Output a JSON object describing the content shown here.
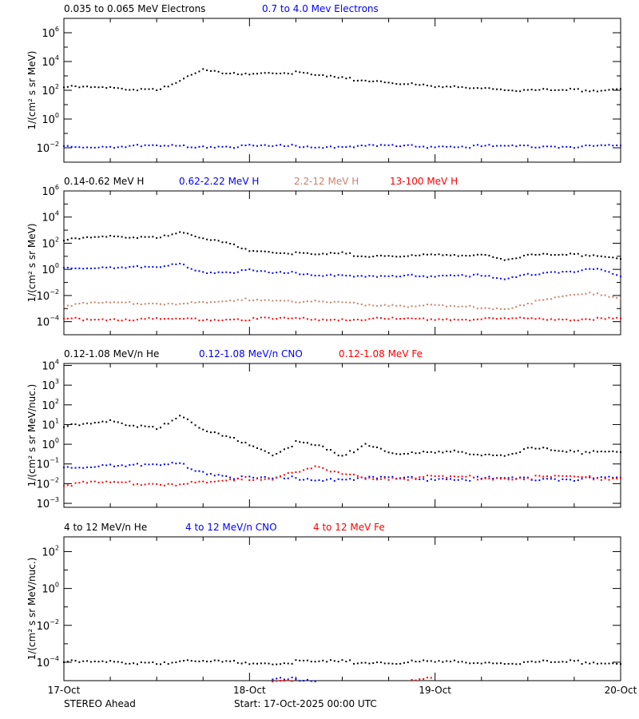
{
  "footer": {
    "spacecraft": "STEREO Ahead",
    "start": "Start: 17-Oct-2025 00:00 UTC"
  },
  "colors": {
    "black": "#000000",
    "blue": "#0000ff",
    "brown": "#c8826a",
    "red": "#ff0000"
  },
  "chart_data": [
    {
      "type": "scatter",
      "ylabel": "1/(cm² s sr MeV)",
      "yscale": "log",
      "ylim": [
        0.001,
        10000000
      ],
      "ytick_exponents": [
        6,
        4,
        2,
        0,
        -2
      ],
      "xlim_hours": [
        0,
        72
      ],
      "x_step_hours": 3,
      "xtick_labels": [
        "17-Oct",
        "18-Oct",
        "19-Oct",
        "20-Oct"
      ],
      "series": [
        {
          "name": "0.035 to 0.065 MeV Electrons",
          "color": "#000000",
          "log10_values": [
            2.2,
            2.2,
            2.15,
            2.1,
            2.1,
            2.6,
            3.4,
            3.1,
            3.2,
            3.3,
            3.2,
            3.0,
            2.8,
            2.7,
            2.6,
            2.4,
            2.2,
            2.2,
            2.2,
            2.1,
            2.0,
            2.0,
            2.0,
            2.0,
            2.2
          ]
        },
        {
          "name": "0.7 to 4.0 Mev Electrons",
          "color": "#0000ff",
          "log10_values": [
            -1.9,
            -1.9,
            -1.9,
            -1.9,
            -1.9,
            -1.9,
            -1.9,
            -1.9,
            -1.9,
            -1.9,
            -1.9,
            -1.9,
            -1.9,
            -1.9,
            -1.9,
            -1.9,
            -1.9,
            -1.9,
            -1.9,
            -1.9,
            -1.9,
            -1.9,
            -1.9,
            -1.9,
            -1.9
          ]
        }
      ]
    },
    {
      "type": "scatter",
      "ylabel": "1/(cm² s sr MeV)",
      "yscale": "log",
      "ylim": [
        1e-05,
        1000000
      ],
      "ytick_exponents": [
        6,
        4,
        2,
        0,
        -2,
        -4
      ],
      "xlim_hours": [
        0,
        72
      ],
      "x_step_hours": 3,
      "series": [
        {
          "name": "0.14-0.62 MeV H",
          "color": "#000000",
          "log10_values": [
            2.2,
            2.4,
            2.5,
            2.5,
            2.5,
            2.8,
            2.3,
            2.0,
            1.5,
            1.4,
            1.2,
            1.1,
            1.2,
            1.0,
            1.1,
            1.0,
            1.1,
            1.0,
            1.2,
            0.8,
            1.1,
            1.1,
            1.1,
            1.1,
            0.9
          ]
        },
        {
          "name": "0.62-2.22 MeV H",
          "color": "#0000ff",
          "log10_values": [
            0.1,
            0.15,
            0.2,
            0.15,
            0.1,
            0.4,
            -0.2,
            -0.2,
            -0.1,
            -0.3,
            -0.3,
            -0.4,
            -0.4,
            -0.6,
            -0.6,
            -0.5,
            -0.5,
            -0.4,
            -0.5,
            -0.8,
            -0.4,
            -0.2,
            -0.1,
            0.0,
            -0.6
          ]
        },
        {
          "name": "2.2-12 MeV H",
          "color": "#c8826a",
          "log10_values": [
            -2.7,
            -2.65,
            -2.6,
            -2.6,
            -2.6,
            -2.6,
            -2.6,
            -2.5,
            -2.3,
            -2.3,
            -2.4,
            -2.5,
            -2.6,
            -2.7,
            -2.7,
            -2.8,
            -2.8,
            -2.9,
            -2.9,
            -3.0,
            -2.6,
            -2.3,
            -2.0,
            -1.8,
            -2.2
          ]
        },
        {
          "name": "13-100 MeV H",
          "color": "#ff0000",
          "log10_values": [
            -3.8,
            -3.8,
            -3.8,
            -3.8,
            -3.8,
            -3.8,
            -3.8,
            -3.8,
            -3.8,
            -3.8,
            -3.8,
            -3.8,
            -3.8,
            -3.8,
            -3.8,
            -3.8,
            -3.8,
            -3.8,
            -3.8,
            -3.8,
            -3.8,
            -3.8,
            -3.8,
            -3.8,
            -3.8
          ]
        }
      ]
    },
    {
      "type": "scatter",
      "ylabel": "1/(cm² s sr MeV/nuc.)",
      "yscale": "log",
      "ylim": [
        0.00063,
        12600
      ],
      "ytick_exponents": [
        4,
        3,
        2,
        1,
        0,
        -1,
        -2,
        -3
      ],
      "xlim_hours": [
        0,
        72
      ],
      "x_step_hours": 3,
      "series": [
        {
          "name": "0.12-1.08 MeV/n He",
          "color": "#000000",
          "log10_values": [
            0.87,
            1.0,
            1.15,
            1.0,
            0.87,
            1.4,
            0.67,
            0.35,
            0.05,
            -0.45,
            0.05,
            -0.1,
            -0.7,
            0.05,
            -0.35,
            -0.5,
            -0.45,
            -0.4,
            -0.5,
            -0.5,
            -0.2,
            -0.3,
            -0.45,
            -0.3,
            -0.3
          ]
        },
        {
          "name": "0.12-1.08 MeV/n CNO",
          "color": "#0000ff",
          "log10_values": [
            -1.2,
            -1.1,
            -1.0,
            -1.1,
            -1.1,
            -1.0,
            -1.4,
            -1.6,
            -1.75,
            -1.75,
            -1.75,
            -1.75,
            -1.75,
            -1.75,
            -1.75,
            -1.75,
            -1.75,
            -1.75,
            -1.75,
            -1.75,
            -1.75,
            -1.75,
            -1.75,
            -1.75,
            -1.75
          ]
        },
        {
          "name": "0.12-1.08 MeV Fe",
          "color": "#ff0000",
          "log10_values": [
            -2.0,
            -2.0,
            -2.0,
            -2.0,
            -2.0,
            -2.0,
            -2.0,
            -1.9,
            -1.75,
            -1.7,
            -1.3,
            -1.2,
            -1.6,
            -1.7,
            -1.7,
            -1.7,
            -1.7,
            -1.7,
            -1.7,
            -1.7,
            -1.7,
            -1.7,
            -1.7,
            -1.7,
            -1.7
          ]
        }
      ]
    },
    {
      "type": "scatter",
      "ylabel": "1/(cm² s sr MeV/nuc.)",
      "yscale": "log",
      "ylim": [
        1e-05,
        630
      ],
      "ytick_exponents": [
        2,
        0,
        -2,
        -4
      ],
      "xlim_hours": [
        0,
        72
      ],
      "x_step_hours": 3,
      "series": [
        {
          "name": "4 to 12 MeV/n He",
          "color": "#000000",
          "log10_values": [
            -4.0,
            -4.0,
            -4.0,
            -4.0,
            -4.0,
            -4.0,
            -4.0,
            -4.0,
            -4.0,
            -4.0,
            -4.0,
            -4.0,
            -4.0,
            -4.0,
            -4.0,
            -4.0,
            -4.0,
            -4.0,
            -4.0,
            -4.0,
            -4.0,
            -4.0,
            -4.0,
            -4.0,
            -4.0
          ]
        },
        {
          "name": "4 to 12 MeV/n CNO",
          "color": "#0000ff",
          "log10_values": [
            null,
            null,
            null,
            null,
            null,
            null,
            null,
            null,
            null,
            -4.95,
            -4.95,
            null,
            null,
            null,
            null,
            null,
            null,
            null,
            null,
            null,
            null,
            null,
            null,
            null,
            null
          ]
        },
        {
          "name": "4 to 12 MeV Fe",
          "color": "#ff0000",
          "log10_values": [
            null,
            null,
            null,
            null,
            null,
            null,
            null,
            null,
            null,
            -4.95,
            null,
            null,
            null,
            null,
            null,
            -4.95,
            null,
            null,
            null,
            null,
            null,
            null,
            null,
            null,
            null
          ]
        }
      ]
    }
  ]
}
